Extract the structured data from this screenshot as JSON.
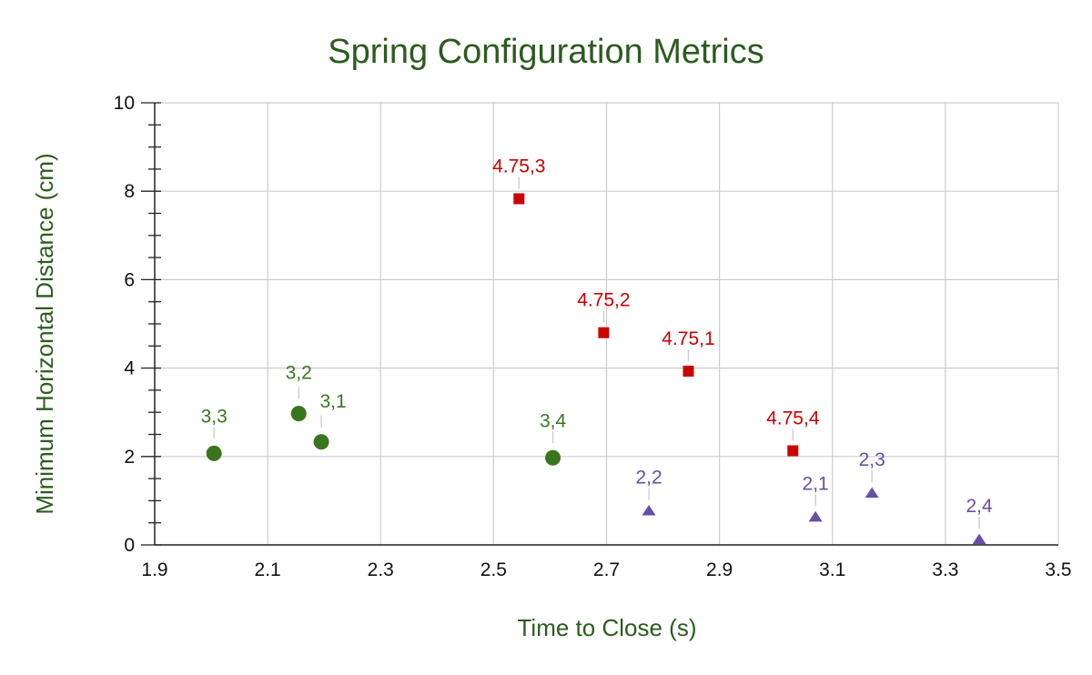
{
  "colors": {
    "title": "#2c5b1f",
    "axis_title": "#2c5b1f",
    "grid": "#cccccc",
    "axis": "#222222",
    "leader": "#cccccc"
  },
  "chart_data": {
    "type": "scatter",
    "title": "Spring Configuration Metrics",
    "xlabel": "Time to Close (s)",
    "ylabel": "Minimum Horizontal Distance (cm)",
    "xlim": [
      1.9,
      3.5
    ],
    "ylim": [
      0,
      10
    ],
    "x_ticks": [
      1.9,
      2.1,
      2.3,
      2.5,
      2.7,
      2.9,
      3.1,
      3.3,
      3.5
    ],
    "x_tick_labels": [
      "1.9",
      "2.1",
      "2.3",
      "2.5",
      "2.7",
      "2.9",
      "3.1",
      "3.3",
      "3.5"
    ],
    "y_ticks": [
      0,
      2,
      4,
      6,
      8,
      10
    ],
    "y_tick_labels": [
      "0",
      "2",
      "4",
      "6",
      "8",
      "10"
    ],
    "grid": true,
    "legend": "none",
    "series": [
      {
        "marker": "circle",
        "color": "#38761d",
        "points": [
          {
            "x": 2.005,
            "y": 2.07,
            "label": "3,3"
          },
          {
            "x": 2.155,
            "y": 2.97,
            "label": "3,2"
          },
          {
            "x": 2.195,
            "y": 2.33,
            "label": "3,1"
          },
          {
            "x": 2.605,
            "y": 1.97,
            "label": "3,4"
          }
        ]
      },
      {
        "marker": "square",
        "color": "#cc0000",
        "points": [
          {
            "x": 2.545,
            "y": 7.83,
            "label": "4.75,3"
          },
          {
            "x": 2.695,
            "y": 4.8,
            "label": "4.75,2"
          },
          {
            "x": 2.845,
            "y": 3.93,
            "label": "4.75,1"
          },
          {
            "x": 3.03,
            "y": 2.13,
            "label": "4.75,4"
          }
        ]
      },
      {
        "marker": "triangle",
        "color": "#674ea7",
        "points": [
          {
            "x": 2.775,
            "y": 0.77,
            "label": "2,2"
          },
          {
            "x": 3.07,
            "y": 0.63,
            "label": "2,1"
          },
          {
            "x": 3.17,
            "y": 1.17,
            "label": "2,3"
          },
          {
            "x": 3.36,
            "y": 0.12,
            "label": "2,4"
          }
        ]
      }
    ]
  }
}
